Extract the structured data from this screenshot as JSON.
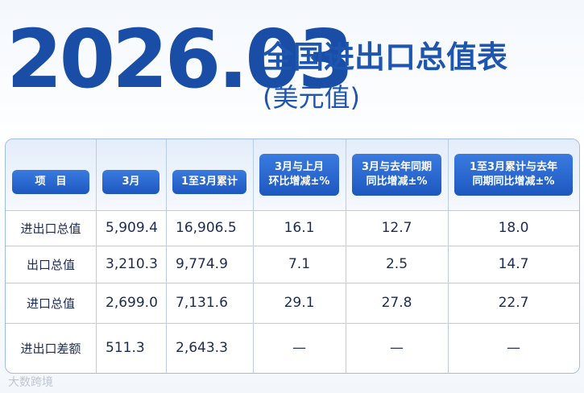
{
  "header": {
    "year": "2026.03",
    "title": "全国进出口总值表",
    "subtitle": "(美元值)"
  },
  "table": {
    "columns": [
      [
        "项　目"
      ],
      [
        "3月"
      ],
      [
        "1至3月累计"
      ],
      [
        "3月与上月",
        "环比增减±%"
      ],
      [
        "3月与去年同期",
        "同比增减±%"
      ],
      [
        "1至3月累计与去年",
        "同期同比增减±%"
      ]
    ],
    "rows": [
      [
        "进出口总值",
        "5,909.4",
        "16,906.5",
        "16.1",
        "12.7",
        "18.0"
      ],
      [
        "出口总值",
        "3,210.3",
        "9,774.9",
        "7.1",
        "2.5",
        "14.7"
      ],
      [
        "进口总值",
        "2,699.0",
        "7,131.6",
        "29.1",
        "27.8",
        "22.7"
      ],
      [
        "进出口差额",
        "511.3",
        "2,643.3",
        "—",
        "—",
        "—"
      ]
    ]
  },
  "watermark": "大数跨境"
}
